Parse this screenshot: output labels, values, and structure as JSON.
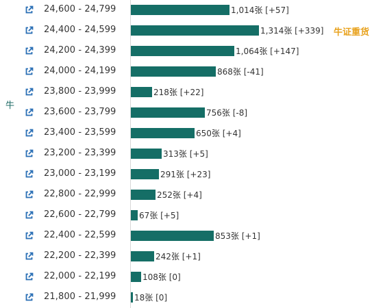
{
  "side_label": "牛",
  "tag_label": "牛证重货",
  "colors": {
    "bar": "#156e66",
    "icon": "#2a6fb5",
    "tag": "#e8a21e"
  },
  "icons": {
    "row_link": "external-link-icon"
  },
  "chart_data": {
    "type": "bar",
    "orientation": "horizontal",
    "categories": [
      "24,600 - 24,799",
      "24,400 - 24,599",
      "24,200 - 24,399",
      "24,000 - 24,199",
      "23,800 - 23,999",
      "23,600 - 23,799",
      "23,400 - 23,599",
      "23,200 - 23,399",
      "23,000 - 23,199",
      "22,800 - 22,999",
      "22,600 - 22,799",
      "22,400 - 22,599",
      "22,200 - 22,399",
      "22,000 - 22,199",
      "21,800 - 21,999"
    ],
    "values": [
      1014,
      1314,
      1064,
      868,
      218,
      756,
      650,
      313,
      291,
      252,
      67,
      853,
      242,
      108,
      18
    ],
    "labels": [
      "1,014张 [+57]",
      "1,314张 [+339]",
      "1,064张 [+147]",
      "868张 [-41]",
      "218张 [+22]",
      "756张 [-8]",
      "650张 [+4]",
      "313张 [+5]",
      "291张 [+23]",
      "252张 [+4]",
      "67张 [+5]",
      "853张 [+1]",
      "242张 [+1]",
      "108张 [0]",
      "18张 [0]"
    ],
    "xlim": [
      0,
      1314
    ],
    "grid": false,
    "legend": "none"
  }
}
